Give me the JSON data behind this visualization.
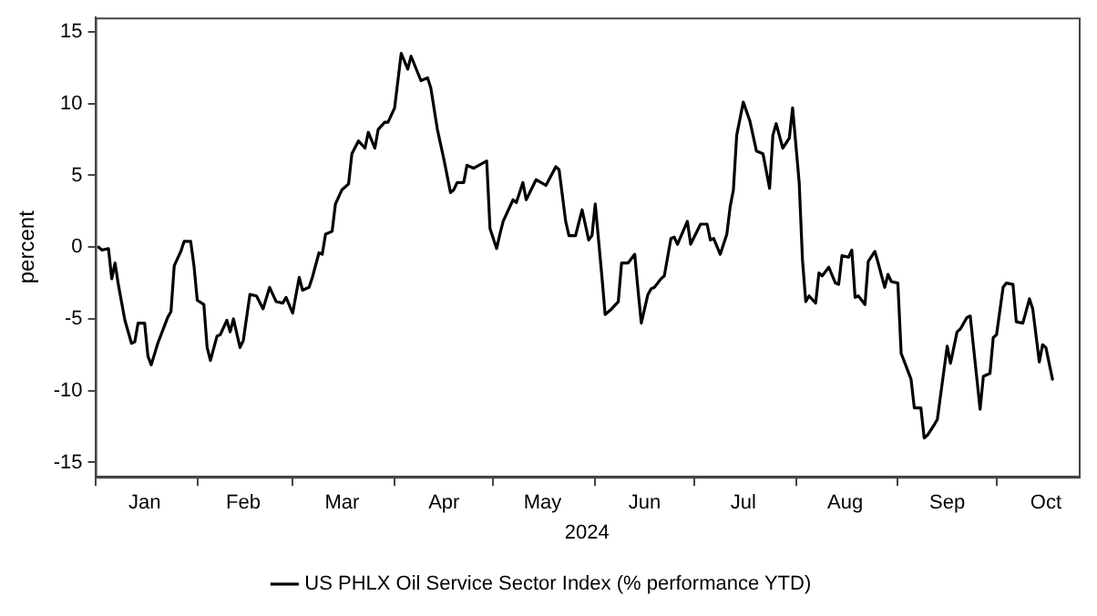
{
  "chart_data": {
    "type": "line",
    "xlabel": "2024",
    "ylabel": "percent",
    "xlim": [
      "2024-01-01",
      "2024-10-26"
    ],
    "ylim": [
      -16,
      16
    ],
    "xticks": [
      {
        "value": "2024-01-01",
        "label": null
      },
      {
        "value": "2024-01-16",
        "label": "Jan"
      },
      {
        "value": "2024-02-01",
        "label": null
      },
      {
        "value": "2024-02-15",
        "label": "Feb"
      },
      {
        "value": "2024-03-01",
        "label": null
      },
      {
        "value": "2024-03-16",
        "label": "Mar"
      },
      {
        "value": "2024-04-01",
        "label": null
      },
      {
        "value": "2024-04-16",
        "label": "Apr"
      },
      {
        "value": "2024-05-01",
        "label": null
      },
      {
        "value": "2024-05-16",
        "label": "May"
      },
      {
        "value": "2024-06-01",
        "label": null
      },
      {
        "value": "2024-06-16",
        "label": "Jun"
      },
      {
        "value": "2024-07-01",
        "label": null
      },
      {
        "value": "2024-07-16",
        "label": "Jul"
      },
      {
        "value": "2024-08-01",
        "label": null
      },
      {
        "value": "2024-08-16",
        "label": "Aug"
      },
      {
        "value": "2024-09-01",
        "label": null
      },
      {
        "value": "2024-09-16",
        "label": "Sep"
      },
      {
        "value": "2024-10-01",
        "label": null
      },
      {
        "value": "2024-10-16",
        "label": "Oct"
      }
    ],
    "yticks": [
      -15,
      -10,
      -5,
      0,
      5,
      10,
      15
    ],
    "grid": false,
    "legend": "bottom",
    "marker": "none",
    "line_style": "solid",
    "series": [
      {
        "name": "US PHLX Oil Service Sector Index (% performance YTD)",
        "color": "#000000",
        "x": [
          "2024-01-02",
          "2024-01-03",
          "2024-01-05",
          "2024-01-06",
          "2024-01-07",
          "2024-01-08",
          "2024-01-10",
          "2024-01-12",
          "2024-01-13",
          "2024-01-14",
          "2024-01-16",
          "2024-01-17",
          "2024-01-18",
          "2024-01-20",
          "2024-01-23",
          "2024-01-24",
          "2024-01-25",
          "2024-01-27",
          "2024-01-28",
          "2024-01-30",
          "2024-01-31",
          "2024-02-01",
          "2024-02-03",
          "2024-02-04",
          "2024-02-05",
          "2024-02-07",
          "2024-02-08",
          "2024-02-10",
          "2024-02-11",
          "2024-02-12",
          "2024-02-14",
          "2024-02-15",
          "2024-02-17",
          "2024-02-19",
          "2024-02-21",
          "2024-02-23",
          "2024-02-25",
          "2024-02-27",
          "2024-02-28",
          "2024-03-01",
          "2024-03-03",
          "2024-03-04",
          "2024-03-06",
          "2024-03-07",
          "2024-03-09",
          "2024-03-10",
          "2024-03-11",
          "2024-03-13",
          "2024-03-14",
          "2024-03-16",
          "2024-03-18",
          "2024-03-19",
          "2024-03-21",
          "2024-03-23",
          "2024-03-24",
          "2024-03-26",
          "2024-03-27",
          "2024-03-29",
          "2024-03-30",
          "2024-04-01",
          "2024-04-03",
          "2024-04-05",
          "2024-04-06",
          "2024-04-09",
          "2024-04-11",
          "2024-04-12",
          "2024-04-14",
          "2024-04-16",
          "2024-04-18",
          "2024-04-19",
          "2024-04-20",
          "2024-04-22",
          "2024-04-23",
          "2024-04-25",
          "2024-04-29",
          "2024-04-30",
          "2024-05-02",
          "2024-05-03",
          "2024-05-04",
          "2024-05-07",
          "2024-05-08",
          "2024-05-10",
          "2024-05-11",
          "2024-05-14",
          "2024-05-17",
          "2024-05-20",
          "2024-05-21",
          "2024-05-23",
          "2024-05-24",
          "2024-05-26",
          "2024-05-28",
          "2024-05-30",
          "2024-05-31",
          "2024-06-01",
          "2024-06-03",
          "2024-06-04",
          "2024-06-06",
          "2024-06-08",
          "2024-06-09",
          "2024-06-11",
          "2024-06-13",
          "2024-06-14",
          "2024-06-15",
          "2024-06-17",
          "2024-06-18",
          "2024-06-19",
          "2024-06-21",
          "2024-06-22",
          "2024-06-24",
          "2024-06-25",
          "2024-06-26",
          "2024-06-29",
          "2024-06-30",
          "2024-07-03",
          "2024-07-05",
          "2024-07-06",
          "2024-07-07",
          "2024-07-09",
          "2024-07-11",
          "2024-07-12",
          "2024-07-13",
          "2024-07-14",
          "2024-07-16",
          "2024-07-18",
          "2024-07-20",
          "2024-07-22",
          "2024-07-24",
          "2024-07-25",
          "2024-07-26",
          "2024-07-28",
          "2024-07-30",
          "2024-07-31",
          "2024-08-02",
          "2024-08-03",
          "2024-08-04",
          "2024-08-05",
          "2024-08-07",
          "2024-08-08",
          "2024-08-09",
          "2024-08-11",
          "2024-08-13",
          "2024-08-14",
          "2024-08-15",
          "2024-08-17",
          "2024-08-18",
          "2024-08-19",
          "2024-08-20",
          "2024-08-22",
          "2024-08-23",
          "2024-08-25",
          "2024-08-26",
          "2024-08-28",
          "2024-08-29",
          "2024-08-30",
          "2024-09-01",
          "2024-09-02",
          "2024-09-04",
          "2024-09-05",
          "2024-09-06",
          "2024-09-08",
          "2024-09-09",
          "2024-09-10",
          "2024-09-12",
          "2024-09-13",
          "2024-09-16",
          "2024-09-17",
          "2024-09-19",
          "2024-09-20",
          "2024-09-22",
          "2024-09-23",
          "2024-09-26",
          "2024-09-27",
          "2024-09-29",
          "2024-09-30",
          "2024-10-01",
          "2024-10-03",
          "2024-10-04",
          "2024-10-06",
          "2024-10-07",
          "2024-10-09",
          "2024-10-11",
          "2024-10-12",
          "2024-10-14",
          "2024-10-15",
          "2024-10-16",
          "2024-10-18"
        ],
        "values": [
          0,
          -0.2,
          -0.1,
          -2.2,
          -1.1,
          -2.6,
          -5.1,
          -6.7,
          -6.6,
          -5.3,
          -5.3,
          -7.6,
          -8.2,
          -6.7,
          -4.9,
          -4.5,
          -1.3,
          -0.3,
          0.4,
          0.4,
          -1.3,
          -3.7,
          -4.0,
          -7.0,
          -7.9,
          -6.2,
          -6.1,
          -5.1,
          -5.9,
          -5.0,
          -7.0,
          -6.5,
          -3.3,
          -3.4,
          -4.3,
          -2.8,
          -3.8,
          -3.9,
          -3.5,
          -4.6,
          -2.1,
          -3.0,
          -2.8,
          -2.1,
          -0.4,
          -0.5,
          0.9,
          1.1,
          3.0,
          4.0,
          4.4,
          6.5,
          7.4,
          6.9,
          8.0,
          6.9,
          8.2,
          8.7,
          8.7,
          9.7,
          13.5,
          12.4,
          13.3,
          11.6,
          11.8,
          11.1,
          8.2,
          6.1,
          3.8,
          4.0,
          4.5,
          4.5,
          5.7,
          5.5,
          6.0,
          1.3,
          -0.1,
          0.9,
          1.8,
          3.3,
          3.1,
          4.5,
          3.3,
          4.7,
          4.3,
          5.6,
          5.4,
          1.8,
          0.8,
          0.8,
          2.6,
          0.5,
          0.8,
          3.0,
          -2.0,
          -4.7,
          -4.3,
          -3.8,
          -1.1,
          -1.1,
          -0.5,
          -3.0,
          -5.3,
          -3.3,
          -2.9,
          -2.8,
          -2.2,
          -2.0,
          0.6,
          0.7,
          0.2,
          1.8,
          0.2,
          1.6,
          1.6,
          0.5,
          0.6,
          -0.5,
          0.9,
          2.8,
          4.0,
          7.8,
          10.1,
          8.8,
          6.7,
          6.5,
          4.1,
          7.8,
          8.6,
          6.9,
          7.6,
          9.7,
          4.5,
          -0.9,
          -3.8,
          -3.4,
          -3.9,
          -1.8,
          -2.0,
          -1.4,
          -2.5,
          -2.6,
          -0.6,
          -0.7,
          -0.2,
          -3.5,
          -3.4,
          -4.0,
          -1.0,
          -0.3,
          -1.1,
          -2.8,
          -1.9,
          -2.4,
          -2.5,
          -7.4,
          -8.6,
          -9.2,
          -11.2,
          -11.2,
          -13.3,
          -13.1,
          -12.4,
          -12.0,
          -6.9,
          -8.1,
          -5.9,
          -5.7,
          -4.9,
          -4.8,
          -11.3,
          -9.0,
          -8.8,
          -6.3,
          -6.1,
          -2.8,
          -2.5,
          -2.6,
          -5.2,
          -5.3,
          -3.6,
          -4.3,
          -8.0,
          -6.8,
          -7.0,
          -9.2
        ]
      }
    ]
  }
}
